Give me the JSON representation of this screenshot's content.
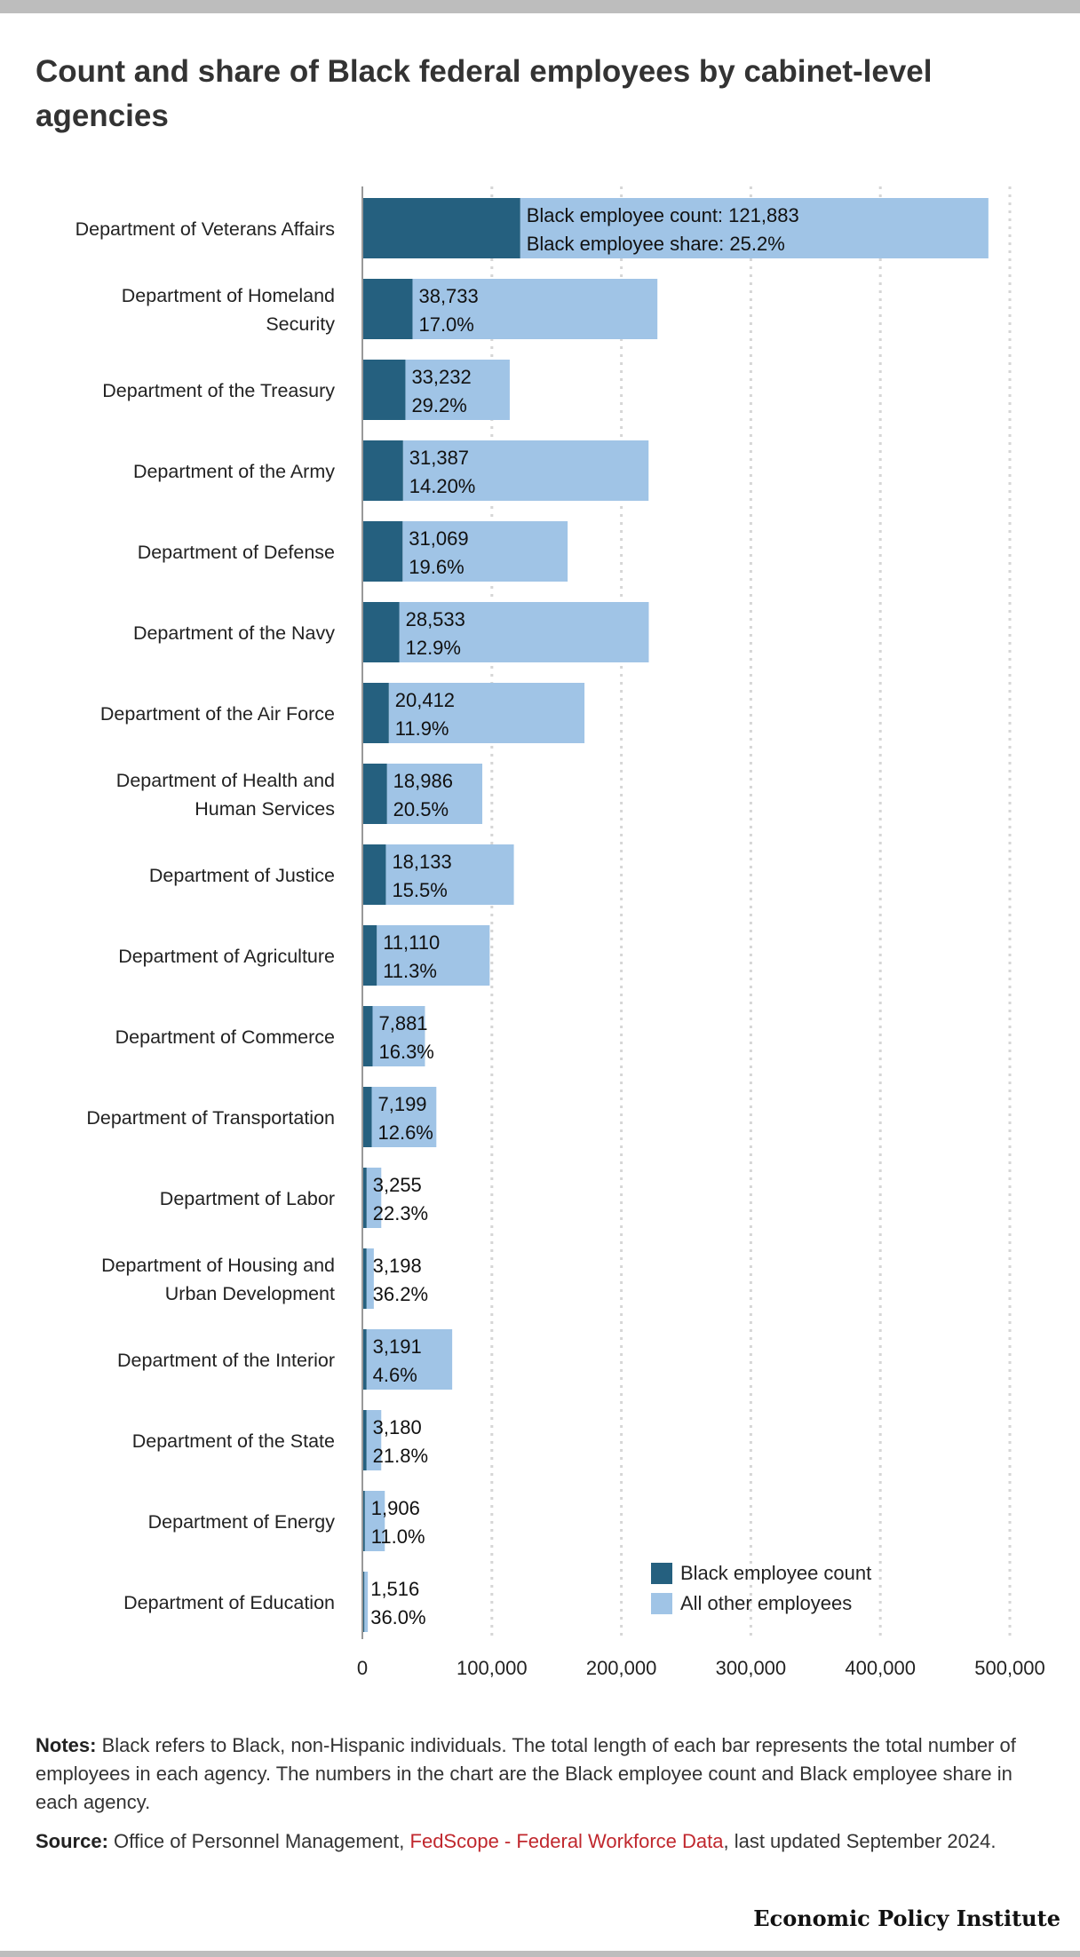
{
  "title": "Count and share of Black federal employees by cabinet-level agencies",
  "chart_data": {
    "type": "bar",
    "orientation": "horizontal",
    "stacked": true,
    "categories": [
      "Department of Veterans Affairs",
      "Department of Homeland Security",
      "Department of the Treasury",
      "Department of the Army",
      "Department of Defense",
      "Department of the Navy",
      "Department of the Air Force",
      "Department of Health and Human Services",
      "Department of Justice",
      "Department of Agriculture",
      "Department of Commerce",
      "Department of Transportation",
      "Department of Labor",
      "Department of Housing and Urban Development",
      "Department of the Interior",
      "Department of the State",
      "Department of Energy",
      "Department of Education"
    ],
    "category_lines": [
      [
        "Department of Veterans Affairs"
      ],
      [
        "Department of Homeland",
        "Security"
      ],
      [
        "Department of the Treasury"
      ],
      [
        "Department of the Army"
      ],
      [
        "Department of Defense"
      ],
      [
        "Department of the Navy"
      ],
      [
        "Department of the Air Force"
      ],
      [
        "Department of Health and",
        "Human Services"
      ],
      [
        "Department of Justice"
      ],
      [
        "Department of Agriculture"
      ],
      [
        "Department of Commerce"
      ],
      [
        "Department of Transportation"
      ],
      [
        "Department of Labor"
      ],
      [
        "Department of Housing and",
        "Urban Development"
      ],
      [
        "Department of the Interior"
      ],
      [
        "Department of the State"
      ],
      [
        "Department of Energy"
      ],
      [
        "Department of Education"
      ]
    ],
    "series": [
      {
        "name": "Black employee count",
        "color": "#25607f",
        "values": [
          121883,
          38733,
          33232,
          31387,
          31069,
          28533,
          20412,
          18986,
          18133,
          11110,
          7881,
          7199,
          3255,
          3198,
          3191,
          3180,
          1906,
          1516
        ]
      },
      {
        "name": "All other employees",
        "color": "#a0c4e6",
        "values": [
          361567,
          189107,
          80576,
          189643,
          127449,
          192645,
          151120,
          73627,
          98854,
          87210,
          40469,
          49937,
          11341,
          5636,
          66176,
          11408,
          15421,
          2695
        ]
      }
    ],
    "data_labels": {
      "count": [
        "121,883",
        "38,733",
        "33,232",
        "31,387",
        "31,069",
        "28,533",
        "20,412",
        "18,986",
        "18,133",
        "11,110",
        "7,881",
        "7,199",
        "3,255",
        "3,198",
        "3,191",
        "3,180",
        "1,906",
        "1,516"
      ],
      "share": [
        "25.2%",
        "17.0%",
        "29.2%",
        "14.20%",
        "19.6%",
        "12.9%",
        "11.9%",
        "20.5%",
        "15.5%",
        "11.3%",
        "16.3%",
        "12.6%",
        "22.3%",
        "36.2%",
        "4.6%",
        "21.8%",
        "11.0%",
        "36.0%"
      ],
      "first_count_prefix": "Black employee count: ",
      "first_share_prefix": "Black employee share: "
    },
    "x_ticks": [
      0,
      100000,
      200000,
      300000,
      400000,
      500000
    ],
    "x_tick_labels": [
      "0",
      "100,000",
      "200,000",
      "300,000",
      "400,000",
      "500,000"
    ],
    "xlim": [
      0,
      500000
    ],
    "grid": true,
    "legend_position": "bottom-right",
    "xlabel": "",
    "ylabel": ""
  },
  "notes": {
    "notes_label": "Notes:",
    "notes_text": "Black refers to Black, non-Hispanic individuals. The total length of each bar represents the total number of employees in each agency. The numbers in the chart are the Black employee count and Black employee share in each agency.",
    "source_label": "Source:",
    "source_text_before": "Office of Personnel Management,",
    "source_link": "FedScope - Federal Workforce Data",
    "source_text_after": ", last updated September 2024."
  },
  "brand": "Economic Policy Institute",
  "colors": {
    "black_count": "#25607f",
    "all_other": "#a0c4e6",
    "link": "#c0272d"
  }
}
